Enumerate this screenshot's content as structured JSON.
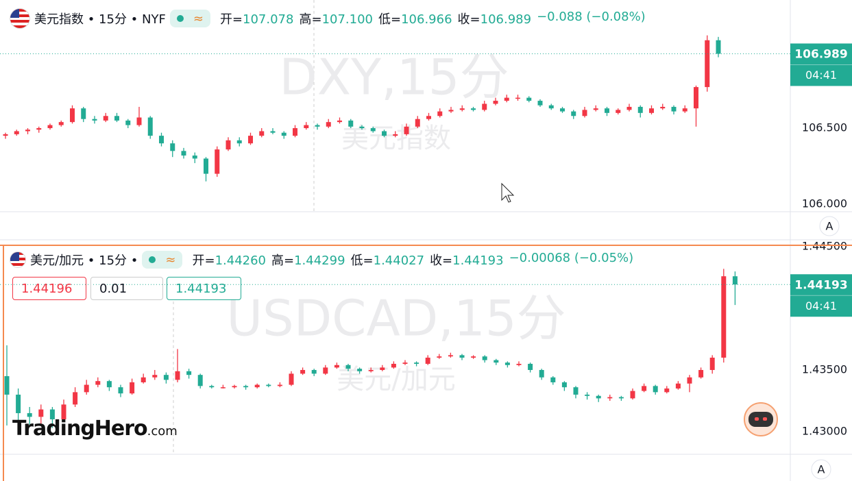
{
  "chart_data": [
    {
      "type": "candlestick",
      "title": "美元指数 • 15分 • NYF",
      "legend_fields": [
        {
          "label": "开=",
          "value": "107.078"
        },
        {
          "label": "高=",
          "value": "107.100"
        },
        {
          "label": "低=",
          "value": "106.966"
        },
        {
          "label": "收=",
          "value": "106.989"
        }
      ],
      "change": "−0.088 (−0.08%)",
      "watermark_symbol": "DXY,15分",
      "watermark_name": "美元指数",
      "price_label": "106.989",
      "countdown": "04:41",
      "scale_button": "A",
      "up_color": "#f23645",
      "down_color": "#22ab94",
      "ylim": [
        105.955,
        107.32
      ],
      "yticks": [
        {
          "value": 106,
          "label": "106.000"
        },
        {
          "value": 106.5,
          "label": "106.500"
        }
      ],
      "ohlc": [
        [
          106.45,
          106.47,
          106.43,
          106.46
        ],
        [
          106.46,
          106.49,
          106.45,
          106.48
        ],
        [
          106.48,
          106.5,
          106.46,
          106.49
        ],
        [
          106.49,
          106.51,
          106.47,
          106.5
        ],
        [
          106.5,
          106.53,
          106.49,
          106.52
        ],
        [
          106.52,
          106.55,
          106.51,
          106.54
        ],
        [
          106.54,
          106.65,
          106.53,
          106.63
        ],
        [
          106.63,
          106.64,
          106.54,
          106.56
        ],
        [
          106.56,
          106.58,
          106.53,
          106.55
        ],
        [
          106.55,
          106.6,
          106.54,
          106.58
        ],
        [
          106.58,
          106.6,
          106.54,
          106.55
        ],
        [
          106.55,
          106.56,
          106.5,
          106.52
        ],
        [
          106.52,
          106.64,
          106.51,
          106.57
        ],
        [
          106.57,
          106.58,
          106.43,
          106.45
        ],
        [
          106.45,
          106.47,
          106.38,
          106.4
        ],
        [
          106.4,
          106.42,
          106.31,
          106.35
        ],
        [
          106.35,
          106.37,
          106.3,
          106.32
        ],
        [
          106.32,
          106.34,
          106.27,
          106.3
        ],
        [
          106.3,
          106.31,
          106.15,
          106.2
        ],
        [
          106.2,
          106.38,
          106.18,
          106.36
        ],
        [
          106.36,
          106.44,
          106.35,
          106.42
        ],
        [
          106.42,
          106.44,
          106.38,
          106.4
        ],
        [
          106.4,
          106.47,
          106.39,
          106.45
        ],
        [
          106.45,
          106.5,
          106.44,
          106.48
        ],
        [
          106.48,
          106.5,
          106.46,
          106.47
        ],
        [
          106.47,
          106.48,
          106.43,
          106.45
        ],
        [
          106.45,
          106.52,
          106.44,
          106.5
        ],
        [
          106.5,
          106.54,
          106.49,
          106.52
        ],
        [
          106.52,
          106.53,
          106.49,
          106.51
        ],
        [
          106.51,
          106.56,
          106.5,
          106.54
        ],
        [
          106.54,
          106.57,
          106.53,
          106.55
        ],
        [
          106.55,
          106.56,
          106.5,
          106.51
        ],
        [
          106.51,
          106.52,
          106.49,
          106.5
        ],
        [
          106.5,
          106.51,
          106.47,
          106.48
        ],
        [
          106.48,
          106.49,
          106.44,
          106.45
        ],
        [
          106.45,
          106.48,
          106.44,
          106.46
        ],
        [
          106.46,
          106.53,
          106.45,
          106.51
        ],
        [
          106.51,
          106.58,
          106.5,
          106.56
        ],
        [
          106.56,
          106.6,
          106.55,
          106.58
        ],
        [
          106.58,
          106.63,
          106.57,
          106.61
        ],
        [
          106.61,
          106.64,
          106.6,
          106.62
        ],
        [
          106.62,
          106.65,
          106.61,
          106.63
        ],
        [
          106.63,
          106.64,
          106.61,
          106.62
        ],
        [
          106.62,
          106.68,
          106.61,
          106.66
        ],
        [
          106.66,
          106.7,
          106.65,
          106.68
        ],
        [
          106.68,
          106.72,
          106.67,
          106.7
        ],
        [
          106.7,
          106.72,
          106.68,
          106.7
        ],
        [
          106.7,
          106.71,
          106.67,
          106.68
        ],
        [
          106.68,
          106.69,
          106.64,
          106.65
        ],
        [
          106.65,
          106.66,
          106.62,
          106.63
        ],
        [
          106.63,
          106.64,
          106.6,
          106.61
        ],
        [
          106.61,
          106.62,
          106.56,
          106.58
        ],
        [
          106.58,
          106.64,
          106.57,
          106.62
        ],
        [
          106.62,
          106.65,
          106.61,
          106.63
        ],
        [
          106.63,
          106.64,
          106.58,
          106.6
        ],
        [
          106.6,
          106.63,
          106.59,
          106.62
        ],
        [
          106.62,
          106.66,
          106.61,
          106.64
        ],
        [
          106.64,
          106.65,
          106.57,
          106.6
        ],
        [
          106.6,
          106.65,
          106.59,
          106.63
        ],
        [
          106.63,
          106.66,
          106.62,
          106.64
        ],
        [
          106.64,
          106.65,
          106.59,
          106.61
        ],
        [
          106.61,
          106.65,
          106.6,
          106.63
        ],
        [
          106.63,
          106.78,
          106.51,
          106.77
        ],
        [
          106.77,
          107.11,
          106.74,
          107.078
        ],
        [
          107.078,
          107.1,
          106.966,
          106.989
        ]
      ]
    },
    {
      "type": "candlestick",
      "title": "美元/加元 • 15分 •",
      "legend_fields": [
        {
          "label": "开=",
          "value": "1.44260"
        },
        {
          "label": "高=",
          "value": "1.44299"
        },
        {
          "label": "低=",
          "value": "1.44027"
        },
        {
          "label": "收=",
          "value": "1.44193"
        }
      ],
      "change": "−0.00068 (−0.05%)",
      "order_inputs": [
        "1.44196",
        "0.01",
        "1.44193"
      ],
      "watermark_symbol": "USDCAD,15分",
      "watermark_name": "美元/加元",
      "price_label": "1.44193",
      "countdown": "04:41",
      "scale_button": "A",
      "up_color": "#f23645",
      "down_color": "#22ab94",
      "ylim": [
        1.42822,
        1.445
      ],
      "yticks": [
        {
          "value": 1.43,
          "label": "1.43000"
        },
        {
          "value": 1.435,
          "label": "1.43500"
        },
        {
          "value": 1.445,
          "label": "1.44500"
        }
      ],
      "ohlc": [
        [
          1.4345,
          1.437,
          1.4305,
          1.433
        ],
        [
          1.433,
          1.4335,
          1.4308,
          1.4315
        ],
        [
          1.4315,
          1.432,
          1.4305,
          1.4312
        ],
        [
          1.4312,
          1.4322,
          1.4306,
          1.4318
        ],
        [
          1.4318,
          1.432,
          1.4303,
          1.431
        ],
        [
          1.431,
          1.4326,
          1.4308,
          1.4322
        ],
        [
          1.4322,
          1.4336,
          1.432,
          1.4332
        ],
        [
          1.4332,
          1.4342,
          1.433,
          1.4338
        ],
        [
          1.4338,
          1.4344,
          1.4336,
          1.4341
        ],
        [
          1.4341,
          1.4342,
          1.4333,
          1.4336
        ],
        [
          1.4336,
          1.4338,
          1.4328,
          1.4331
        ],
        [
          1.4331,
          1.4343,
          1.433,
          1.434
        ],
        [
          1.434,
          1.4347,
          1.4339,
          1.4344
        ],
        [
          1.4344,
          1.435,
          1.4342,
          1.4346
        ],
        [
          1.4346,
          1.4348,
          1.4339,
          1.4342
        ],
        [
          1.4342,
          1.4367,
          1.434,
          1.4349
        ],
        [
          1.4349,
          1.4351,
          1.4343,
          1.4346
        ],
        [
          1.4346,
          1.4347,
          1.4335,
          1.4337
        ],
        [
          1.4337,
          1.4338,
          1.4335,
          1.4336
        ],
        [
          1.4336,
          1.4338,
          1.4335,
          1.4336
        ],
        [
          1.4336,
          1.4338,
          1.4335,
          1.4337
        ],
        [
          1.4337,
          1.4338,
          1.4334,
          1.4336
        ],
        [
          1.4336,
          1.4339,
          1.4335,
          1.4338
        ],
        [
          1.4338,
          1.4339,
          1.4336,
          1.4337
        ],
        [
          1.4337,
          1.434,
          1.4336,
          1.4338
        ],
        [
          1.4338,
          1.4349,
          1.4337,
          1.4347
        ],
        [
          1.4347,
          1.4352,
          1.4346,
          1.435
        ],
        [
          1.435,
          1.4351,
          1.4345,
          1.4347
        ],
        [
          1.4347,
          1.4354,
          1.4346,
          1.4352
        ],
        [
          1.4352,
          1.4356,
          1.4351,
          1.4354
        ],
        [
          1.4354,
          1.4355,
          1.4349,
          1.4351
        ],
        [
          1.4351,
          1.4352,
          1.4347,
          1.4349
        ],
        [
          1.4349,
          1.4352,
          1.4348,
          1.435
        ],
        [
          1.435,
          1.4354,
          1.4349,
          1.4352
        ],
        [
          1.4352,
          1.4357,
          1.4351,
          1.4355
        ],
        [
          1.4355,
          1.4358,
          1.4354,
          1.4356
        ],
        [
          1.4356,
          1.4357,
          1.4353,
          1.4355
        ],
        [
          1.4355,
          1.4362,
          1.4354,
          1.436
        ],
        [
          1.436,
          1.4363,
          1.4359,
          1.4361
        ],
        [
          1.4361,
          1.4364,
          1.436,
          1.4362
        ],
        [
          1.4362,
          1.4363,
          1.4358,
          1.436
        ],
        [
          1.436,
          1.4362,
          1.4359,
          1.4361
        ],
        [
          1.4361,
          1.4362,
          1.4356,
          1.4358
        ],
        [
          1.4358,
          1.4359,
          1.4354,
          1.4356
        ],
        [
          1.4356,
          1.4357,
          1.4352,
          1.4354
        ],
        [
          1.4354,
          1.4357,
          1.4353,
          1.4355
        ],
        [
          1.4355,
          1.4356,
          1.4348,
          1.435
        ],
        [
          1.435,
          1.4351,
          1.4342,
          1.4344
        ],
        [
          1.4344,
          1.4345,
          1.4338,
          1.434
        ],
        [
          1.434,
          1.4341,
          1.4333,
          1.4336
        ],
        [
          1.4336,
          1.4337,
          1.4327,
          1.433
        ],
        [
          1.433,
          1.4332,
          1.4326,
          1.4329
        ],
        [
          1.4329,
          1.433,
          1.4324,
          1.4327
        ],
        [
          1.4327,
          1.433,
          1.4325,
          1.4328
        ],
        [
          1.4328,
          1.4329,
          1.4325,
          1.4327
        ],
        [
          1.4327,
          1.4335,
          1.4326,
          1.4333
        ],
        [
          1.4333,
          1.4339,
          1.4332,
          1.4337
        ],
        [
          1.4337,
          1.4338,
          1.433,
          1.4332
        ],
        [
          1.4332,
          1.4337,
          1.4331,
          1.4335
        ],
        [
          1.4335,
          1.4341,
          1.4334,
          1.4339
        ],
        [
          1.4339,
          1.4346,
          1.4332,
          1.4344
        ],
        [
          1.4344,
          1.4352,
          1.4343,
          1.435
        ],
        [
          1.435,
          1.4362,
          1.4347,
          1.436
        ],
        [
          1.436,
          1.4432,
          1.4356,
          1.4426
        ],
        [
          1.4426,
          1.44299,
          1.44027,
          1.44193
        ]
      ]
    }
  ],
  "logo": {
    "name": "TradingHero",
    "domain": ".com"
  }
}
